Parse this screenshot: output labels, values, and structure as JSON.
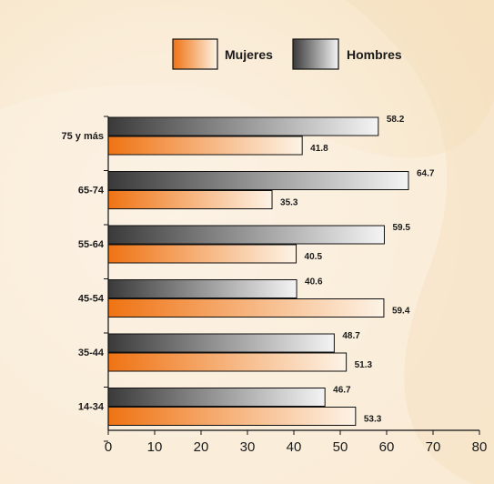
{
  "chart_data": {
    "type": "bar",
    "orientation": "horizontal",
    "categories": [
      "75 y más",
      "65-74",
      "55-64",
      "45-54",
      "35-44",
      "14-34"
    ],
    "series": [
      {
        "name": "Hombres",
        "values": [
          58.2,
          64.7,
          59.5,
          40.6,
          48.7,
          46.7
        ],
        "color": "#555555"
      },
      {
        "name": "Mujeres",
        "values": [
          41.8,
          35.3,
          40.5,
          59.4,
          51.3,
          53.3
        ],
        "color": "#f07a1a"
      }
    ],
    "xticks": [
      "0",
      "10",
      "20",
      "30",
      "40",
      "50",
      "60",
      "70",
      "80"
    ],
    "xlim": [
      0,
      80
    ],
    "legend": "top",
    "grid": false,
    "title": "",
    "xlabel": "",
    "ylabel": ""
  }
}
